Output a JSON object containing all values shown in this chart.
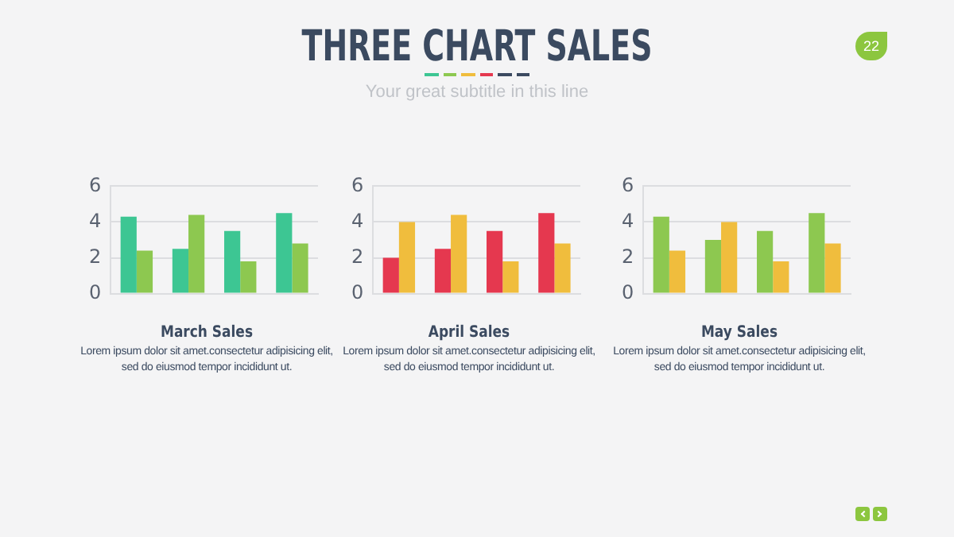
{
  "chart_data": [
    {
      "type": "other",
      "title": "THREE CHART SALES",
      "subtitle": "Your great subtitle in this line",
      "annotations": [
        "22"
      ]
    },
    {
      "type": "bar",
      "title": "March Sales",
      "categories": [
        null,
        null,
        null,
        null
      ],
      "series": [
        {
          "color": "#3dc693",
          "values": [
            4.3,
            2.5,
            3.5,
            4.5
          ]
        },
        {
          "color": "#8dc850",
          "values": [
            2.4,
            4.4,
            1.8,
            2.8
          ]
        }
      ],
      "ylim": [
        0,
        6
      ],
      "yticks": [
        0,
        2,
        4,
        6
      ],
      "grid": "y",
      "legend": false,
      "tick_labels": "y",
      "annotations": [
        "Lorem ipsum dolor sit amet.consectetur adipisicing elit, sed do eiusmod tempor incididunt ut."
      ]
    },
    {
      "type": "bar",
      "title": "April Sales",
      "categories": [
        null,
        null,
        null,
        null
      ],
      "series": [
        {
          "color": "#e5384f",
          "values": [
            2,
            2.5,
            3.5,
            4.5
          ]
        },
        {
          "color": "#f0bd3d",
          "values": [
            4,
            4.4,
            1.8,
            2.8
          ]
        }
      ],
      "ylim": [
        0,
        6
      ],
      "yticks": [
        0,
        2,
        4,
        6
      ],
      "grid": "y",
      "legend": false,
      "tick_labels": "y",
      "annotations": [
        "Lorem ipsum dolor sit amet.consectetur adipisicing elit, sed do eiusmod tempor incididunt ut."
      ]
    },
    {
      "type": "bar",
      "title": "May Sales",
      "categories": [
        null,
        null,
        null,
        null
      ],
      "series": [
        {
          "color": "#8dc850",
          "values": [
            4.3,
            3,
            3.5,
            4.5
          ]
        },
        {
          "color": "#f0bd3d",
          "values": [
            2.4,
            4,
            1.8,
            2.8
          ]
        }
      ],
      "ylim": [
        0,
        6
      ],
      "yticks": [
        0,
        2,
        4,
        6
      ],
      "grid": "y",
      "legend": false,
      "tick_labels": "y",
      "annotations": [
        "Lorem ipsum dolor sit amet.consectetur adipisicing elit, sed do eiusmod tempor incididunt ut."
      ]
    }
  ]
}
